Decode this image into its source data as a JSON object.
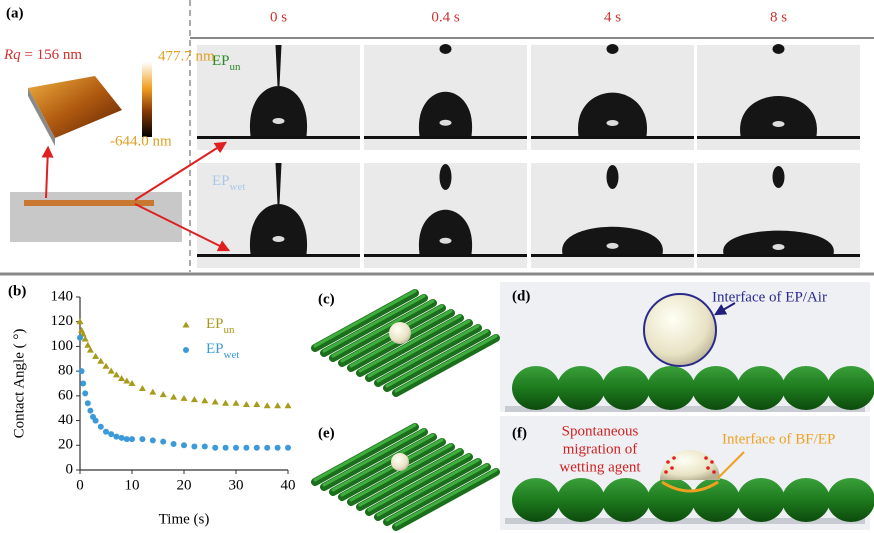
{
  "panel_a": {
    "label": "(a)",
    "times": [
      "0 s",
      "0.4 s",
      "4 s",
      "8 s"
    ],
    "rq_label": "Rq",
    "rq_value": " = 156 nm",
    "scale_max": "477.7 nm",
    "scale_min": "-644.0 nm",
    "rows": [
      {
        "name": "EP",
        "subscript": "un"
      },
      {
        "name": "EP",
        "subscript": "wet"
      }
    ]
  },
  "panel_b": {
    "label": "(b)",
    "chart_data": {
      "type": "scatter",
      "x_label": "Time (s)",
      "y_label": "Contact Angle ( °)",
      "xlim": [
        0,
        40
      ],
      "xticks": [
        0,
        10,
        20,
        30,
        40
      ],
      "ylim": [
        0,
        140
      ],
      "yticks": [
        0,
        20,
        40,
        60,
        80,
        100,
        120,
        140
      ],
      "series": [
        {
          "name": "EP",
          "subscript": "un",
          "color": "#a89a1a",
          "marker": "triangle",
          "x": [
            0,
            0.3,
            0.6,
            1,
            1.5,
            2,
            3,
            4,
            5,
            6,
            7,
            8,
            9,
            10,
            12,
            14,
            16,
            18,
            20,
            22,
            24,
            26,
            28,
            30,
            32,
            34,
            36,
            38,
            40
          ],
          "values": [
            120,
            113,
            110,
            106,
            101,
            97,
            92,
            88,
            84,
            80,
            77,
            74,
            72,
            70,
            66,
            63,
            61,
            59,
            58,
            57,
            56,
            55,
            54,
            54,
            53,
            53,
            52,
            52,
            52
          ]
        },
        {
          "name": "EP",
          "subscript": "wet",
          "color": "#3d9ad8",
          "marker": "circle",
          "x": [
            0,
            0.3,
            0.6,
            1,
            1.5,
            2,
            2.5,
            3,
            4,
            5,
            6,
            7,
            8,
            9,
            10,
            12,
            14,
            16,
            18,
            20,
            22,
            24,
            26,
            28,
            30,
            32,
            34,
            36,
            38,
            40
          ],
          "values": [
            107,
            80,
            70,
            62,
            54,
            48,
            43,
            40,
            35,
            31,
            29,
            27,
            26,
            25,
            25,
            25,
            24,
            23,
            21,
            20,
            19,
            19,
            18,
            18,
            18,
            18,
            18,
            18,
            18,
            18
          ]
        }
      ]
    }
  },
  "panel_c": {
    "label": "(c)"
  },
  "panel_d": {
    "label": "(d)",
    "annotation": "Interface of EP/Air"
  },
  "panel_e": {
    "label": "(e)"
  },
  "panel_f": {
    "label": "(f)",
    "annotation_lines": [
      "Spontaneous",
      "migration of",
      "wetting agent"
    ],
    "interface": "Interface of BF/EP"
  }
}
